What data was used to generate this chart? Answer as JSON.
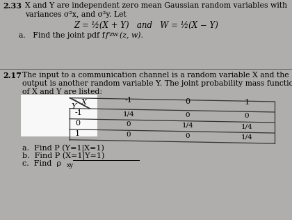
{
  "top_bg": "#c8c4c0",
  "bottom_bg": "#b0aeac",
  "white_box_color": "#f8f8f8",
  "separator_color": "#555555",
  "p233_number": "2.33",
  "p233_l1": "X and Y are independent zero mean Gaussian random variables with",
  "p233_l2": "variances σ²x, and σ²y. Let",
  "p233_eq": "Z = ½(X + Y)   and   W = ½(X − Y)",
  "p233_a": "a.   Find the joint pdf f",
  "p233_sub": "ZW",
  "p233_az": "(z, w).",
  "p217_number": "2.17",
  "p217_l1": "The input to a communication channel is a random variable X and the",
  "p217_l2": "output is another random variable Y. The joint probability mass functions",
  "p217_l3": "of X and Y are listed:",
  "x_header_vals": [
    "-1",
    "0",
    "1"
  ],
  "y_header_vals": [
    "-1",
    "0",
    "1"
  ],
  "table_data": [
    [
      "1/4",
      "0",
      "0"
    ],
    [
      "0",
      "1/4",
      "1/4"
    ],
    [
      "0",
      "0",
      "1/4"
    ]
  ],
  "part_a": "a.  Find P (Y=1|X=1)",
  "part_b": "b.  Find P (X=1|Y=1)",
  "part_c": "c.  Find  ρ",
  "part_c2": "xy"
}
